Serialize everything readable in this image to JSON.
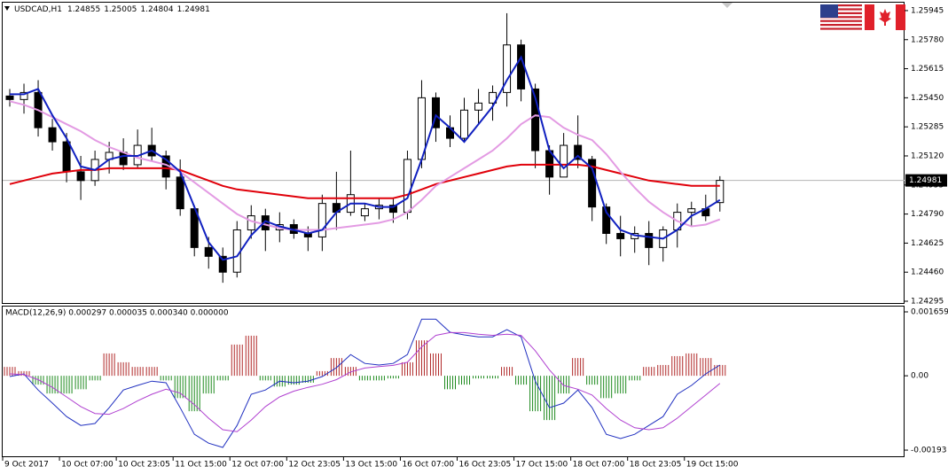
{
  "chart_data": [
    {
      "type": "candlestick",
      "symbol": "USDCAD,H1",
      "color": "#000000",
      "up_fill": "#ffffff",
      "down_fill": "#000000",
      "grid": false,
      "xlim": [
        0,
        63.5
      ],
      "ylim": [
        1.24285,
        1.2599
      ],
      "yticks": [
        1.25945,
        {
          "value": 1.2578,
          "label": "1.25780"
        },
        1.25615,
        {
          "value": 1.2545,
          "label": "1.25450"
        },
        1.25285,
        {
          "value": 1.2512,
          "label": "1.25120"
        },
        1.24955,
        {
          "value": 1.2479,
          "label": "1.24790"
        },
        1.24625,
        {
          "value": 1.2446,
          "label": "1.24460"
        },
        1.24295
      ],
      "open": [
        1.2546,
        1.2544,
        1.2548,
        1.2528,
        1.252,
        1.2503,
        1.2498,
        1.251,
        1.2514,
        1.2507,
        1.2518,
        1.2512,
        1.25,
        1.2482,
        1.246,
        1.2455,
        1.2446,
        1.247,
        1.2478,
        1.247,
        1.2473,
        1.2468,
        1.2466,
        1.2485,
        1.248,
        1.2478,
        1.2482,
        1.2484,
        1.248,
        1.251,
        1.2545,
        1.2528,
        1.2522,
        1.2538,
        1.2542,
        1.2548,
        1.2575,
        1.255,
        1.2515,
        1.25,
        1.2518,
        1.251,
        1.2483,
        1.2468,
        1.2465,
        1.2468,
        1.246,
        1.247,
        1.248,
        1.2482,
        1.24855
      ],
      "high": [
        1.255,
        1.2553,
        1.2555,
        1.2533,
        1.2525,
        1.2512,
        1.2515,
        1.252,
        1.2522,
        1.2527,
        1.2528,
        1.2515,
        1.251,
        1.2484,
        1.2466,
        1.246,
        1.2475,
        1.2484,
        1.2482,
        1.248,
        1.2476,
        1.2472,
        1.249,
        1.2503,
        1.2515,
        1.2485,
        1.2488,
        1.2488,
        1.2515,
        1.2555,
        1.2548,
        1.2535,
        1.2545,
        1.255,
        1.2552,
        1.2593,
        1.2578,
        1.2553,
        1.2518,
        1.2525,
        1.2535,
        1.2512,
        1.2485,
        1.2478,
        1.2472,
        1.2475,
        1.2472,
        1.2485,
        1.2486,
        1.249,
        1.25005
      ],
      "low": [
        1.254,
        1.2536,
        1.2523,
        1.2515,
        1.2497,
        1.2487,
        1.2495,
        1.2502,
        1.2504,
        1.2505,
        1.2509,
        1.2493,
        1.2478,
        1.2455,
        1.2448,
        1.244,
        1.2443,
        1.2465,
        1.2458,
        1.2463,
        1.2465,
        1.2458,
        1.2458,
        1.247,
        1.2478,
        1.2475,
        1.2476,
        1.2474,
        1.2476,
        1.2505,
        1.252,
        1.2517,
        1.252,
        1.253,
        1.2532,
        1.254,
        1.2543,
        1.2505,
        1.249,
        1.25,
        1.2505,
        1.2475,
        1.2462,
        1.2455,
        1.2457,
        1.245,
        1.2452,
        1.246,
        1.2472,
        1.2475,
        1.24804
      ],
      "close": [
        1.2544,
        1.2548,
        1.2528,
        1.252,
        1.2503,
        1.2498,
        1.251,
        1.2514,
        1.2507,
        1.2518,
        1.2512,
        1.25,
        1.2482,
        1.246,
        1.2455,
        1.2446,
        1.247,
        1.2478,
        1.247,
        1.2473,
        1.2468,
        1.2466,
        1.2485,
        1.248,
        1.249,
        1.2482,
        1.2484,
        1.248,
        1.251,
        1.2545,
        1.2528,
        1.2522,
        1.2538,
        1.2542,
        1.2548,
        1.2575,
        1.255,
        1.2515,
        1.25,
        1.2518,
        1.251,
        1.2483,
        1.2468,
        1.2465,
        1.2468,
        1.246,
        1.247,
        1.248,
        1.2482,
        1.2478,
        1.24981
      ],
      "series": [
        {
          "color": "#e0000a",
          "width": 2,
          "values": [
            1.2496,
            1.2498,
            1.25,
            1.2502,
            1.2503,
            1.2504,
            1.2504,
            1.2505,
            1.2505,
            1.2505,
            1.2505,
            1.2505,
            1.2504,
            1.2501,
            1.2498,
            1.2495,
            1.2493,
            1.2492,
            1.2491,
            1.249,
            1.2489,
            1.2488,
            1.2488,
            1.2488,
            1.2488,
            1.2488,
            1.2488,
            1.2488,
            1.249,
            1.2493,
            1.2496,
            1.2498,
            1.25,
            1.2502,
            1.2504,
            1.2506,
            1.2507,
            1.2507,
            1.2507,
            1.2507,
            1.2507,
            1.2506,
            1.2504,
            1.2502,
            1.25,
            1.2498,
            1.2497,
            1.2496,
            1.2495,
            1.2495,
            1.2495
          ]
        },
        {
          "color": "#e39be3",
          "width": 2,
          "values": [
            1.2543,
            1.2541,
            1.2538,
            1.2534,
            1.253,
            1.2526,
            1.2521,
            1.2517,
            1.2514,
            1.2511,
            1.2509,
            1.2507,
            1.2503,
            1.2497,
            1.2491,
            1.2485,
            1.2479,
            1.2475,
            1.2473,
            1.2471,
            1.247,
            1.247,
            1.247,
            1.2471,
            1.2472,
            1.2473,
            1.2474,
            1.2476,
            1.248,
            1.2487,
            1.2495,
            1.25,
            1.2505,
            1.251,
            1.2515,
            1.2522,
            1.253,
            1.2535,
            1.2534,
            1.2528,
            1.2524,
            1.2521,
            1.2513,
            1.2503,
            1.2494,
            1.2486,
            1.248,
            1.2475,
            1.2472,
            1.2473,
            1.2476
          ]
        },
        {
          "color": "#1020c0",
          "width": 2,
          "values": [
            1.2547,
            1.2547,
            1.255,
            1.2535,
            1.2522,
            1.2506,
            1.2504,
            1.251,
            1.2512,
            1.2512,
            1.2515,
            1.251,
            1.2503,
            1.2483,
            1.2463,
            1.2453,
            1.2455,
            1.2467,
            1.2475,
            1.2472,
            1.247,
            1.2468,
            1.247,
            1.248,
            1.2485,
            1.2485,
            1.2483,
            1.2483,
            1.2488,
            1.251,
            1.2535,
            1.2528,
            1.252,
            1.253,
            1.254,
            1.2555,
            1.2568,
            1.2545,
            1.2515,
            1.2505,
            1.2512,
            1.2505,
            1.248,
            1.247,
            1.2467,
            1.2466,
            1.2465,
            1.247,
            1.2478,
            1.2482,
            1.2487
          ]
        }
      ]
    },
    {
      "type": "macd",
      "title": "MACD(12,26,9) 0.000297 0.000035 0.000340 0.000000",
      "grid": false,
      "xlim": [
        0,
        63.5
      ],
      "ylim": [
        -0.00209,
        0.001797
      ],
      "yticks": [
        0.001659,
        {
          "value": 0,
          "label": "0.00"
        },
        -0.00193
      ],
      "xticks": [
        {
          "value": 0,
          "label": "9 Oct 2017"
        },
        {
          "value": 4,
          "label": "10 Oct 07:00"
        },
        {
          "value": 8,
          "label": "10 Oct 23:05"
        },
        {
          "value": 12,
          "label": "11 Oct 15:00"
        },
        {
          "value": 16,
          "label": "12 Oct 07:00"
        },
        {
          "value": 20,
          "label": "12 Oct 23:05"
        },
        {
          "value": 24,
          "label": "13 Oct 15:00"
        },
        {
          "value": 28,
          "label": "16 Oct 07:00"
        },
        {
          "value": 32,
          "label": "16 Oct 23:05"
        },
        {
          "value": 36,
          "label": "17 Oct 15:00"
        },
        {
          "value": 40,
          "label": "18 Oct 07:00"
        },
        {
          "value": 44,
          "label": "18 Oct 23:05"
        },
        {
          "value": 48,
          "label": "19 Oct 15:00"
        }
      ],
      "up_color": "#b02828",
      "down_color": "#1e8a1e",
      "histogram": [
        0.00023,
        0.00012,
        -0.00023,
        -0.00046,
        -0.00046,
        -0.00035,
        -0.00012,
        0.00058,
        0.00035,
        0.00023,
        0.00023,
        -0.00012,
        -0.00058,
        -0.00092,
        -0.00046,
        -0.00012,
        0.00081,
        0.00104,
        -0.00012,
        -0.00028,
        -0.00023,
        -0.00018,
        0.00012,
        0.00046,
        0.00023,
        -0.00012,
        -0.00012,
        -7e-05,
        0.00035,
        0.00092,
        0.00058,
        -0.00035,
        -0.00023,
        -7e-05,
        -7e-05,
        0.00023,
        -0.00023,
        -0.00092,
        -0.00115,
        -0.00046,
        0.00046,
        -0.00023,
        -0.00058,
        -0.00046,
        -0.00012,
        0.00023,
        0.00028,
        0.00051,
        0.00058,
        0.00046,
        0.00028
      ],
      "series": [
        {
          "color": "#2030c0",
          "values": [
            -2e-05,
            5e-05,
            -0.00037,
            -0.00071,
            -0.00106,
            -0.00129,
            -0.00124,
            -0.00083,
            -0.00037,
            -0.00025,
            -0.00014,
            -0.00018,
            -0.00083,
            -0.00152,
            -0.00175,
            -0.00186,
            -0.00129,
            -0.00048,
            -0.00037,
            -0.00014,
            -0.00018,
            -0.00014,
            -2e-05,
            0.00021,
            0.00055,
            0.00032,
            0.00028,
            0.00032,
            0.00055,
            0.00147,
            0.00147,
            0.00113,
            0.00106,
            0.00101,
            0.00101,
            0.0012,
            0.00101,
            -0.00014,
            -0.00083,
            -0.00071,
            -0.00037,
            -0.00083,
            -0.00152,
            -0.00163,
            -0.00152,
            -0.00129,
            -0.00106,
            -0.00048,
            -0.00025,
            5e-05,
            0.00028
          ]
        },
        {
          "color": "#b040d0",
          "values": [
            5e-05,
            3e-05,
            -0.0001,
            -0.0003,
            -0.00055,
            -0.0008,
            -0.00098,
            -0.001,
            -0.00085,
            -0.00065,
            -0.00048,
            -0.00035,
            -0.00045,
            -0.00075,
            -0.0011,
            -0.0014,
            -0.00145,
            -0.00115,
            -0.0008,
            -0.00055,
            -0.0004,
            -0.0003,
            -0.00022,
            -0.0001,
            0.0001,
            0.0002,
            0.00024,
            0.00027,
            0.00035,
            0.00075,
            0.00105,
            0.00112,
            0.00112,
            0.00108,
            0.00105,
            0.00108,
            0.00105,
            0.00065,
            0.00015,
            -0.00025,
            -0.00035,
            -0.0005,
            -0.00085,
            -0.00115,
            -0.00135,
            -0.0014,
            -0.00135,
            -0.0011,
            -0.0008,
            -0.0005,
            -0.0002
          ]
        }
      ]
    }
  ]
}
